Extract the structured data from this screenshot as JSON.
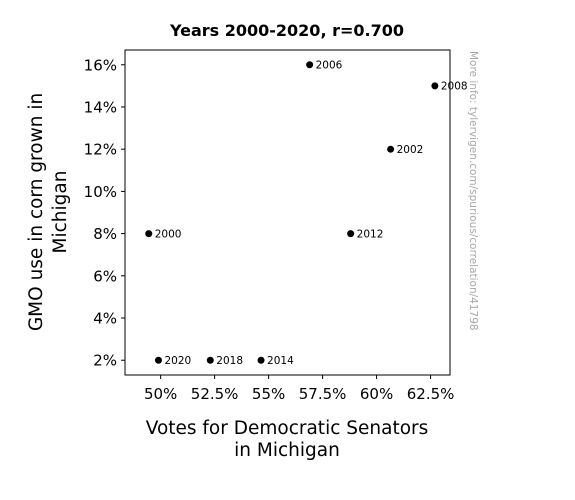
{
  "chart_data": {
    "type": "scatter",
    "title": "Years 2000-2020, r=0.700",
    "xlabel": [
      "Votes for Democratic Senators",
      "in Michigan"
    ],
    "ylabel": [
      "GMO use in corn grown in",
      "Michigan"
    ],
    "xlim": [
      0.4835,
      0.634
    ],
    "ylim": [
      0.013,
      0.167
    ],
    "xticks": [
      0.5,
      0.525,
      0.55,
      0.575,
      0.6,
      0.625
    ],
    "xtick_labels": [
      "50%",
      "52.5%",
      "55%",
      "57.5%",
      "60%",
      "62.5%"
    ],
    "yticks": [
      0.02,
      0.04,
      0.06,
      0.08,
      0.1,
      0.12,
      0.14,
      0.16
    ],
    "ytick_labels": [
      "2%",
      "4%",
      "6%",
      "8%",
      "10%",
      "12%",
      "14%",
      "16%"
    ],
    "grid": false,
    "points": [
      {
        "label": "2000",
        "x": 0.4945,
        "y": 0.08
      },
      {
        "label": "2002",
        "x": 0.6065,
        "y": 0.12
      },
      {
        "label": "2006",
        "x": 0.569,
        "y": 0.16
      },
      {
        "label": "2008",
        "x": 0.627,
        "y": 0.15
      },
      {
        "label": "2012",
        "x": 0.588,
        "y": 0.08
      },
      {
        "label": "2014",
        "x": 0.5465,
        "y": 0.02
      },
      {
        "label": "2018",
        "x": 0.523,
        "y": 0.02
      },
      {
        "label": "2020",
        "x": 0.499,
        "y": 0.02
      }
    ],
    "watermark": "More info: tylervigen.com/spurious/correlation/41798",
    "colors": {
      "marker": "#000000",
      "watermark": "#a8a8a8",
      "frame": "#000000"
    }
  }
}
